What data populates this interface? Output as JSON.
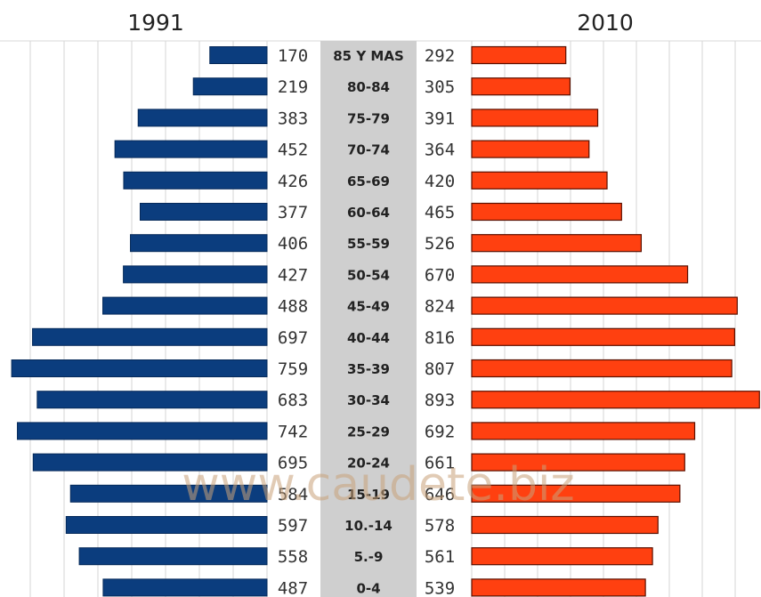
{
  "chart_data": {
    "type": "bar",
    "subtype": "population-pyramid",
    "categories": [
      "85 Y MAS",
      "80-84",
      "75-79",
      "70-74",
      "65-69",
      "60-64",
      "55-59",
      "50-54",
      "45-49",
      "40-44",
      "35-39",
      "30-34",
      "25-29",
      "20-24",
      "15-19",
      "10.-14",
      "5.-9",
      "0-4"
    ],
    "series": [
      {
        "name": "1991",
        "side": "left",
        "color": "#0b3d7e",
        "values": [
          170,
          219,
          383,
          452,
          426,
          377,
          406,
          427,
          488,
          697,
          759,
          683,
          742,
          695,
          584,
          597,
          558,
          487
        ],
        "labels": [
          "170",
          "219",
          "383",
          "452",
          "426",
          "377",
          "406",
          "427",
          "488",
          "697",
          "759",
          "683",
          "742",
          "695",
          "584",
          "597",
          "558",
          "487"
        ]
      },
      {
        "name": "2010",
        "side": "right",
        "color": "#ff4010",
        "values": [
          292,
          305,
          391,
          364,
          420,
          465,
          526,
          670,
          824,
          816,
          807,
          893,
          692,
          661,
          646,
          578,
          561,
          539
        ],
        "labels": [
          "292",
          "305",
          "391",
          "364",
          "420",
          "465",
          "526",
          "670",
          "824",
          "816",
          "807",
          "893",
          "692",
          "661",
          "646",
          "578",
          "561",
          "539"
        ]
      }
    ],
    "grid": true,
    "center_band_color": "#cfcfcf",
    "watermark": "www.caudete.biz"
  }
}
